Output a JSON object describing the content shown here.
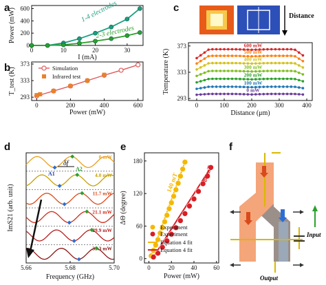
{
  "panel_labels": {
    "a": "a",
    "b": "b",
    "c": "c",
    "d": "d",
    "e": "e",
    "f": "f"
  },
  "chart_data": [
    {
      "id": "a",
      "type": "line",
      "xlabel": "I (mA)",
      "ylabel": "Power (mW)",
      "xlim": [
        0,
        35
      ],
      "ylim": [
        0,
        650
      ],
      "xticks": [
        0,
        10,
        20,
        30
      ],
      "yticks": [
        0,
        200,
        400,
        600
      ],
      "series": [
        {
          "name": "1-4 electrodes",
          "color": "#1a9e80",
          "x": [
            0,
            5,
            10,
            15,
            20,
            25,
            30,
            34
          ],
          "y": [
            0,
            0,
            40,
            110,
            200,
            300,
            430,
            600
          ]
        },
        {
          "name": "2-3 electrodes",
          "color": "#2ca02c",
          "x": [
            0,
            5,
            10,
            15,
            20,
            25,
            30,
            34
          ],
          "y": [
            0,
            0,
            10,
            35,
            70,
            110,
            160,
            210
          ]
        }
      ]
    },
    {
      "id": "b",
      "type": "scatter",
      "xlabel": "Power (mW)",
      "ylabel": "T_test (K)",
      "xlim": [
        -30,
        630
      ],
      "ylim": [
        285,
        378
      ],
      "xticks": [
        0,
        200,
        400,
        600
      ],
      "yticks": [
        293,
        333,
        373
      ],
      "legend": "top-left",
      "series": [
        {
          "name": "Simulation",
          "color": "#e05a5a",
          "x": [
            0,
            100,
            200,
            300,
            400,
            500,
            600
          ],
          "y": [
            296,
            308,
            320,
            333,
            346,
            358,
            371
          ]
        },
        {
          "name": "Infrared test",
          "color": "#e8822a",
          "x": [
            0,
            20,
            100,
            200,
            300,
            400
          ],
          "y": [
            298,
            300,
            308,
            320,
            333,
            347
          ]
        }
      ]
    },
    {
      "id": "c",
      "type": "line",
      "xlabel": "Distance (μm)",
      "ylabel": "Temperature (K)",
      "xlim": [
        -30,
        420
      ],
      "ylim": [
        290,
        378
      ],
      "xticks": [
        0,
        100,
        200,
        300,
        400
      ],
      "yticks": [
        293,
        333,
        373
      ],
      "inset_label": "Distance",
      "series": [
        {
          "name": "600 mW",
          "color": "#d62728",
          "plateau": 368
        },
        {
          "name": "500 mW",
          "color": "#ff7f0e",
          "plateau": 358
        },
        {
          "name": "400 mW",
          "color": "#d4c21a",
          "plateau": 347
        },
        {
          "name": "300 mW",
          "color": "#7fbf1f",
          "plateau": 335
        },
        {
          "name": "200 mW",
          "color": "#2ca02c",
          "plateau": 323
        },
        {
          "name": "100 mW",
          "color": "#1f77b4",
          "plateau": 311
        },
        {
          "name": "0 mW",
          "color": "#6a3d9a",
          "plateau": 300
        }
      ]
    },
    {
      "id": "d",
      "type": "line",
      "xlabel": "Frequency (GHz)",
      "ylabel": "ImS21 (arb. unit)",
      "xlim": [
        5.66,
        5.7
      ],
      "xticks": [
        "5.66",
        "5.68",
        "5.70"
      ],
      "annotations": {
        "df": "δf",
        "a1": "A1",
        "a2": "A2"
      },
      "series": [
        {
          "name": "0 mW",
          "color": "#e8a020"
        },
        {
          "name": "4.0 mW",
          "color": "#c8a000"
        },
        {
          "name": "11.7 mW",
          "color": "#d94a1a"
        },
        {
          "name": "21.1 mW",
          "color": "#d12a1a"
        },
        {
          "name": "29.9 mW",
          "color": "#b81e1e"
        },
        {
          "name": "35.3 mW",
          "color": "#8b1414"
        }
      ]
    },
    {
      "id": "e",
      "type": "scatter",
      "xlabel": "Power (mW)",
      "ylabel": "ΔΘ (degree)",
      "xlim": [
        -4,
        62
      ],
      "ylim": [
        -8,
        195
      ],
      "xticks": [
        0,
        20,
        40,
        60
      ],
      "yticks": [
        0,
        60,
        120,
        180
      ],
      "series": [
        {
          "name": "140 mT",
          "color": "#f5b800",
          "x": [
            2,
            4,
            6,
            8,
            10,
            12,
            14,
            16,
            18,
            20,
            22,
            24,
            26,
            28,
            30,
            32
          ],
          "y": [
            5,
            15,
            25,
            35,
            47,
            57,
            68,
            80,
            92,
            103,
            115,
            127,
            139,
            152,
            165,
            178
          ]
        },
        {
          "name": "80 mT",
          "color": "#d81f26",
          "x": [
            4,
            8,
            12,
            16,
            20,
            24,
            28,
            32,
            36,
            40,
            44,
            48,
            52,
            55
          ],
          "y": [
            3,
            10,
            21,
            33,
            45,
            57,
            70,
            83,
            97,
            110,
            124,
            138,
            152,
            168
          ]
        }
      ],
      "legend": [
        "Experiment",
        "Experiment",
        "Equation 4 fit",
        "Equation 4 fit"
      ]
    }
  ],
  "panel_f": {
    "input_label": "Input",
    "output_label": "Output"
  }
}
